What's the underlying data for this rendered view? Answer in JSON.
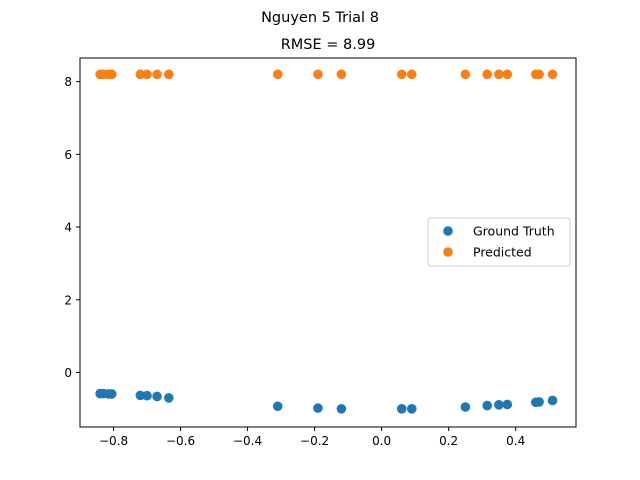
{
  "chart_data": {
    "type": "scatter",
    "suptitle": "Nguyen 5 Trial 8",
    "title": "RMSE = 8.99",
    "xlabel": "",
    "ylabel": "",
    "xlim": [
      -0.9,
      0.58
    ],
    "ylim": [
      -1.5,
      8.65
    ],
    "xticks": [
      -0.8,
      -0.6,
      -0.4,
      -0.2,
      0.0,
      0.2,
      0.4
    ],
    "xtick_labels": [
      "−0.8",
      "−0.6",
      "−0.4",
      "−0.2",
      "0.0",
      "0.2",
      "0.4"
    ],
    "yticks": [
      0,
      2,
      4,
      6,
      8
    ],
    "ytick_labels": [
      "0",
      "2",
      "4",
      "6",
      "8"
    ],
    "grid": false,
    "legend_position": "center-right",
    "series": [
      {
        "name": "Ground Truth",
        "color": "#1f77b4",
        "x": [
          -0.84,
          -0.83,
          -0.815,
          -0.805,
          -0.72,
          -0.7,
          -0.67,
          -0.635,
          -0.31,
          -0.19,
          -0.12,
          0.06,
          0.09,
          0.25,
          0.315,
          0.35,
          0.375,
          0.46,
          0.47,
          0.51
        ],
        "y": [
          -0.58,
          -0.58,
          -0.59,
          -0.59,
          -0.63,
          -0.64,
          -0.66,
          -0.7,
          -0.93,
          -0.98,
          -1.0,
          -1.0,
          -1.0,
          -0.95,
          -0.91,
          -0.89,
          -0.88,
          -0.82,
          -0.81,
          -0.77
        ]
      },
      {
        "name": "Predicted",
        "color": "#ff7f0e",
        "x": [
          -0.84,
          -0.83,
          -0.815,
          -0.805,
          -0.72,
          -0.7,
          -0.67,
          -0.635,
          -0.31,
          -0.19,
          -0.12,
          0.06,
          0.09,
          0.25,
          0.315,
          0.35,
          0.375,
          0.46,
          0.47,
          0.51
        ],
        "y": [
          8.2,
          8.2,
          8.2,
          8.2,
          8.2,
          8.2,
          8.2,
          8.2,
          8.2,
          8.2,
          8.2,
          8.2,
          8.2,
          8.2,
          8.2,
          8.2,
          8.2,
          8.2,
          8.2,
          8.2
        ]
      }
    ]
  }
}
